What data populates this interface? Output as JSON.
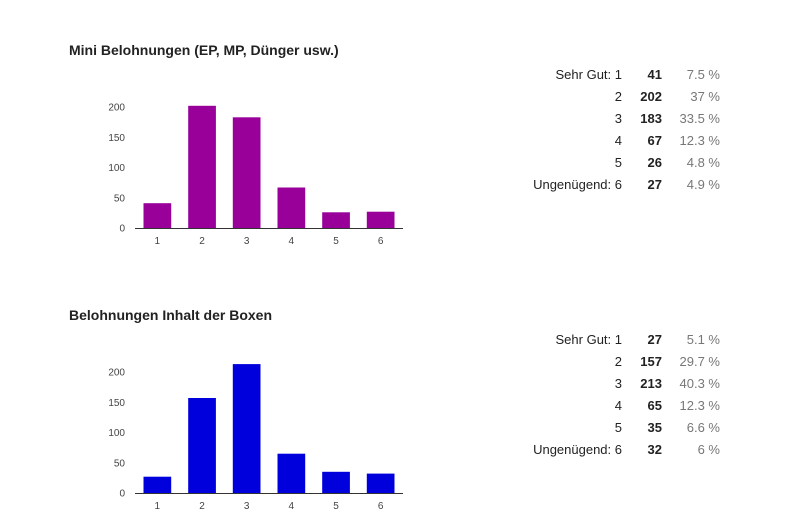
{
  "colors": {
    "chart1": "#990099",
    "chart2": "#0000dd",
    "axis": "#333333"
  },
  "chart_data": [
    {
      "type": "bar",
      "title": "Mini Belohnungen (EP, MP, Dünger usw.)",
      "categories": [
        "1",
        "2",
        "3",
        "4",
        "5",
        "6"
      ],
      "values": [
        41,
        202,
        183,
        67,
        26,
        27
      ],
      "ylim": [
        0,
        200
      ],
      "yticks": [
        "0",
        "50",
        "100",
        "150",
        "200"
      ],
      "xlabel": "",
      "ylabel": "",
      "summary": [
        {
          "label": "Sehr Gut: 1",
          "count": "41",
          "percent": "7.5 %"
        },
        {
          "label": "2",
          "count": "202",
          "percent": "37 %"
        },
        {
          "label": "3",
          "count": "183",
          "percent": "33.5 %"
        },
        {
          "label": "4",
          "count": "67",
          "percent": "12.3 %"
        },
        {
          "label": "5",
          "count": "26",
          "percent": "4.8 %"
        },
        {
          "label": "Ungenügend: 6",
          "count": "27",
          "percent": "4.9 %"
        }
      ]
    },
    {
      "type": "bar",
      "title": "Belohnungen Inhalt der Boxen",
      "categories": [
        "1",
        "2",
        "3",
        "4",
        "5",
        "6"
      ],
      "values": [
        27,
        157,
        213,
        65,
        35,
        32
      ],
      "ylim": [
        0,
        200
      ],
      "yticks": [
        "0",
        "50",
        "100",
        "150",
        "200"
      ],
      "xlabel": "",
      "ylabel": "",
      "summary": [
        {
          "label": "Sehr Gut: 1",
          "count": "27",
          "percent": "5.1 %"
        },
        {
          "label": "2",
          "count": "157",
          "percent": "29.7 %"
        },
        {
          "label": "3",
          "count": "213",
          "percent": "40.3 %"
        },
        {
          "label": "4",
          "count": "65",
          "percent": "12.3 %"
        },
        {
          "label": "5",
          "count": "35",
          "percent": "6.6 %"
        },
        {
          "label": "Ungenügend: 6",
          "count": "32",
          "percent": "6 %"
        }
      ]
    }
  ]
}
